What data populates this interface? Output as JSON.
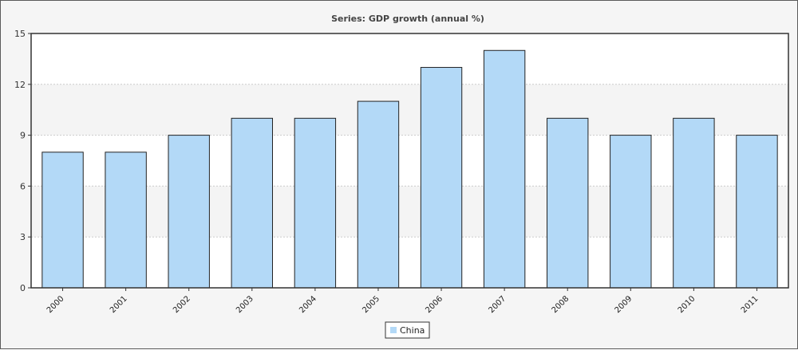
{
  "chart_data": {
    "type": "bar",
    "title": "Series: GDP growth (annual %)",
    "xlabel": "",
    "ylabel": "",
    "categories": [
      "2000",
      "2001",
      "2002",
      "2003",
      "2004",
      "2005",
      "2006",
      "2007",
      "2008",
      "2009",
      "2010",
      "2011"
    ],
    "series": [
      {
        "name": "China",
        "values": [
          8,
          8,
          9,
          10,
          10,
          11,
          13,
          14,
          10,
          9,
          10,
          9
        ]
      }
    ],
    "ylim": [
      0,
      15
    ],
    "yticks": [
      0,
      3,
      6,
      9,
      12,
      15
    ],
    "grid": true,
    "legend": "bottom-center",
    "colors": {
      "bar_fill": "#b3d9f7",
      "bar_stroke": "#222222",
      "band_alt": "#f4f4f4",
      "grid": "#cccccc",
      "axis": "#333333"
    }
  }
}
